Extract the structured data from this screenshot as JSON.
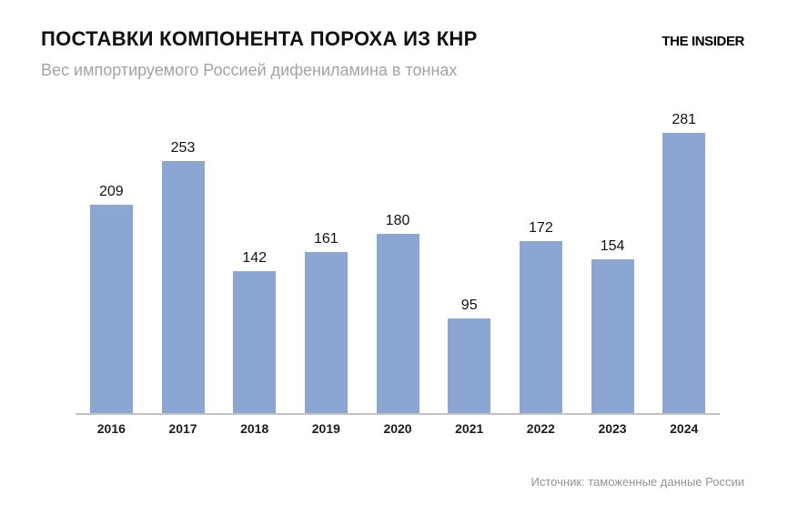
{
  "header": {
    "title": "ПОСТАВКИ КОМПОНЕНТА ПОРОХА ИЗ КНР",
    "subtitle": "Вес импортируемого Россией дифениламина в тоннах",
    "brand": "THE INSIDER"
  },
  "chart_data": {
    "type": "bar",
    "categories": [
      "2016",
      "2017",
      "2018",
      "2019",
      "2020",
      "2021",
      "2022",
      "2023",
      "2024"
    ],
    "values": [
      209,
      253,
      142,
      161,
      180,
      95,
      172,
      154,
      281
    ],
    "title": "ПОСТАВКИ КОМПОНЕНТА ПОРОХА ИЗ КНР",
    "subtitle": "Вес импортируемого Россией дифениламина в тоннах",
    "xlabel": "",
    "ylabel": "",
    "ylim": [
      0,
      310
    ],
    "grid": false,
    "legend_position": "none",
    "value_labels_shown": true,
    "bar_color": "#8ca6d4",
    "axis_line_color": "#c2c2c2",
    "label_color": "#111111",
    "tick_label_color": "#1c1c1c"
  },
  "footer": {
    "source": "Источник: таможенные данные России"
  }
}
